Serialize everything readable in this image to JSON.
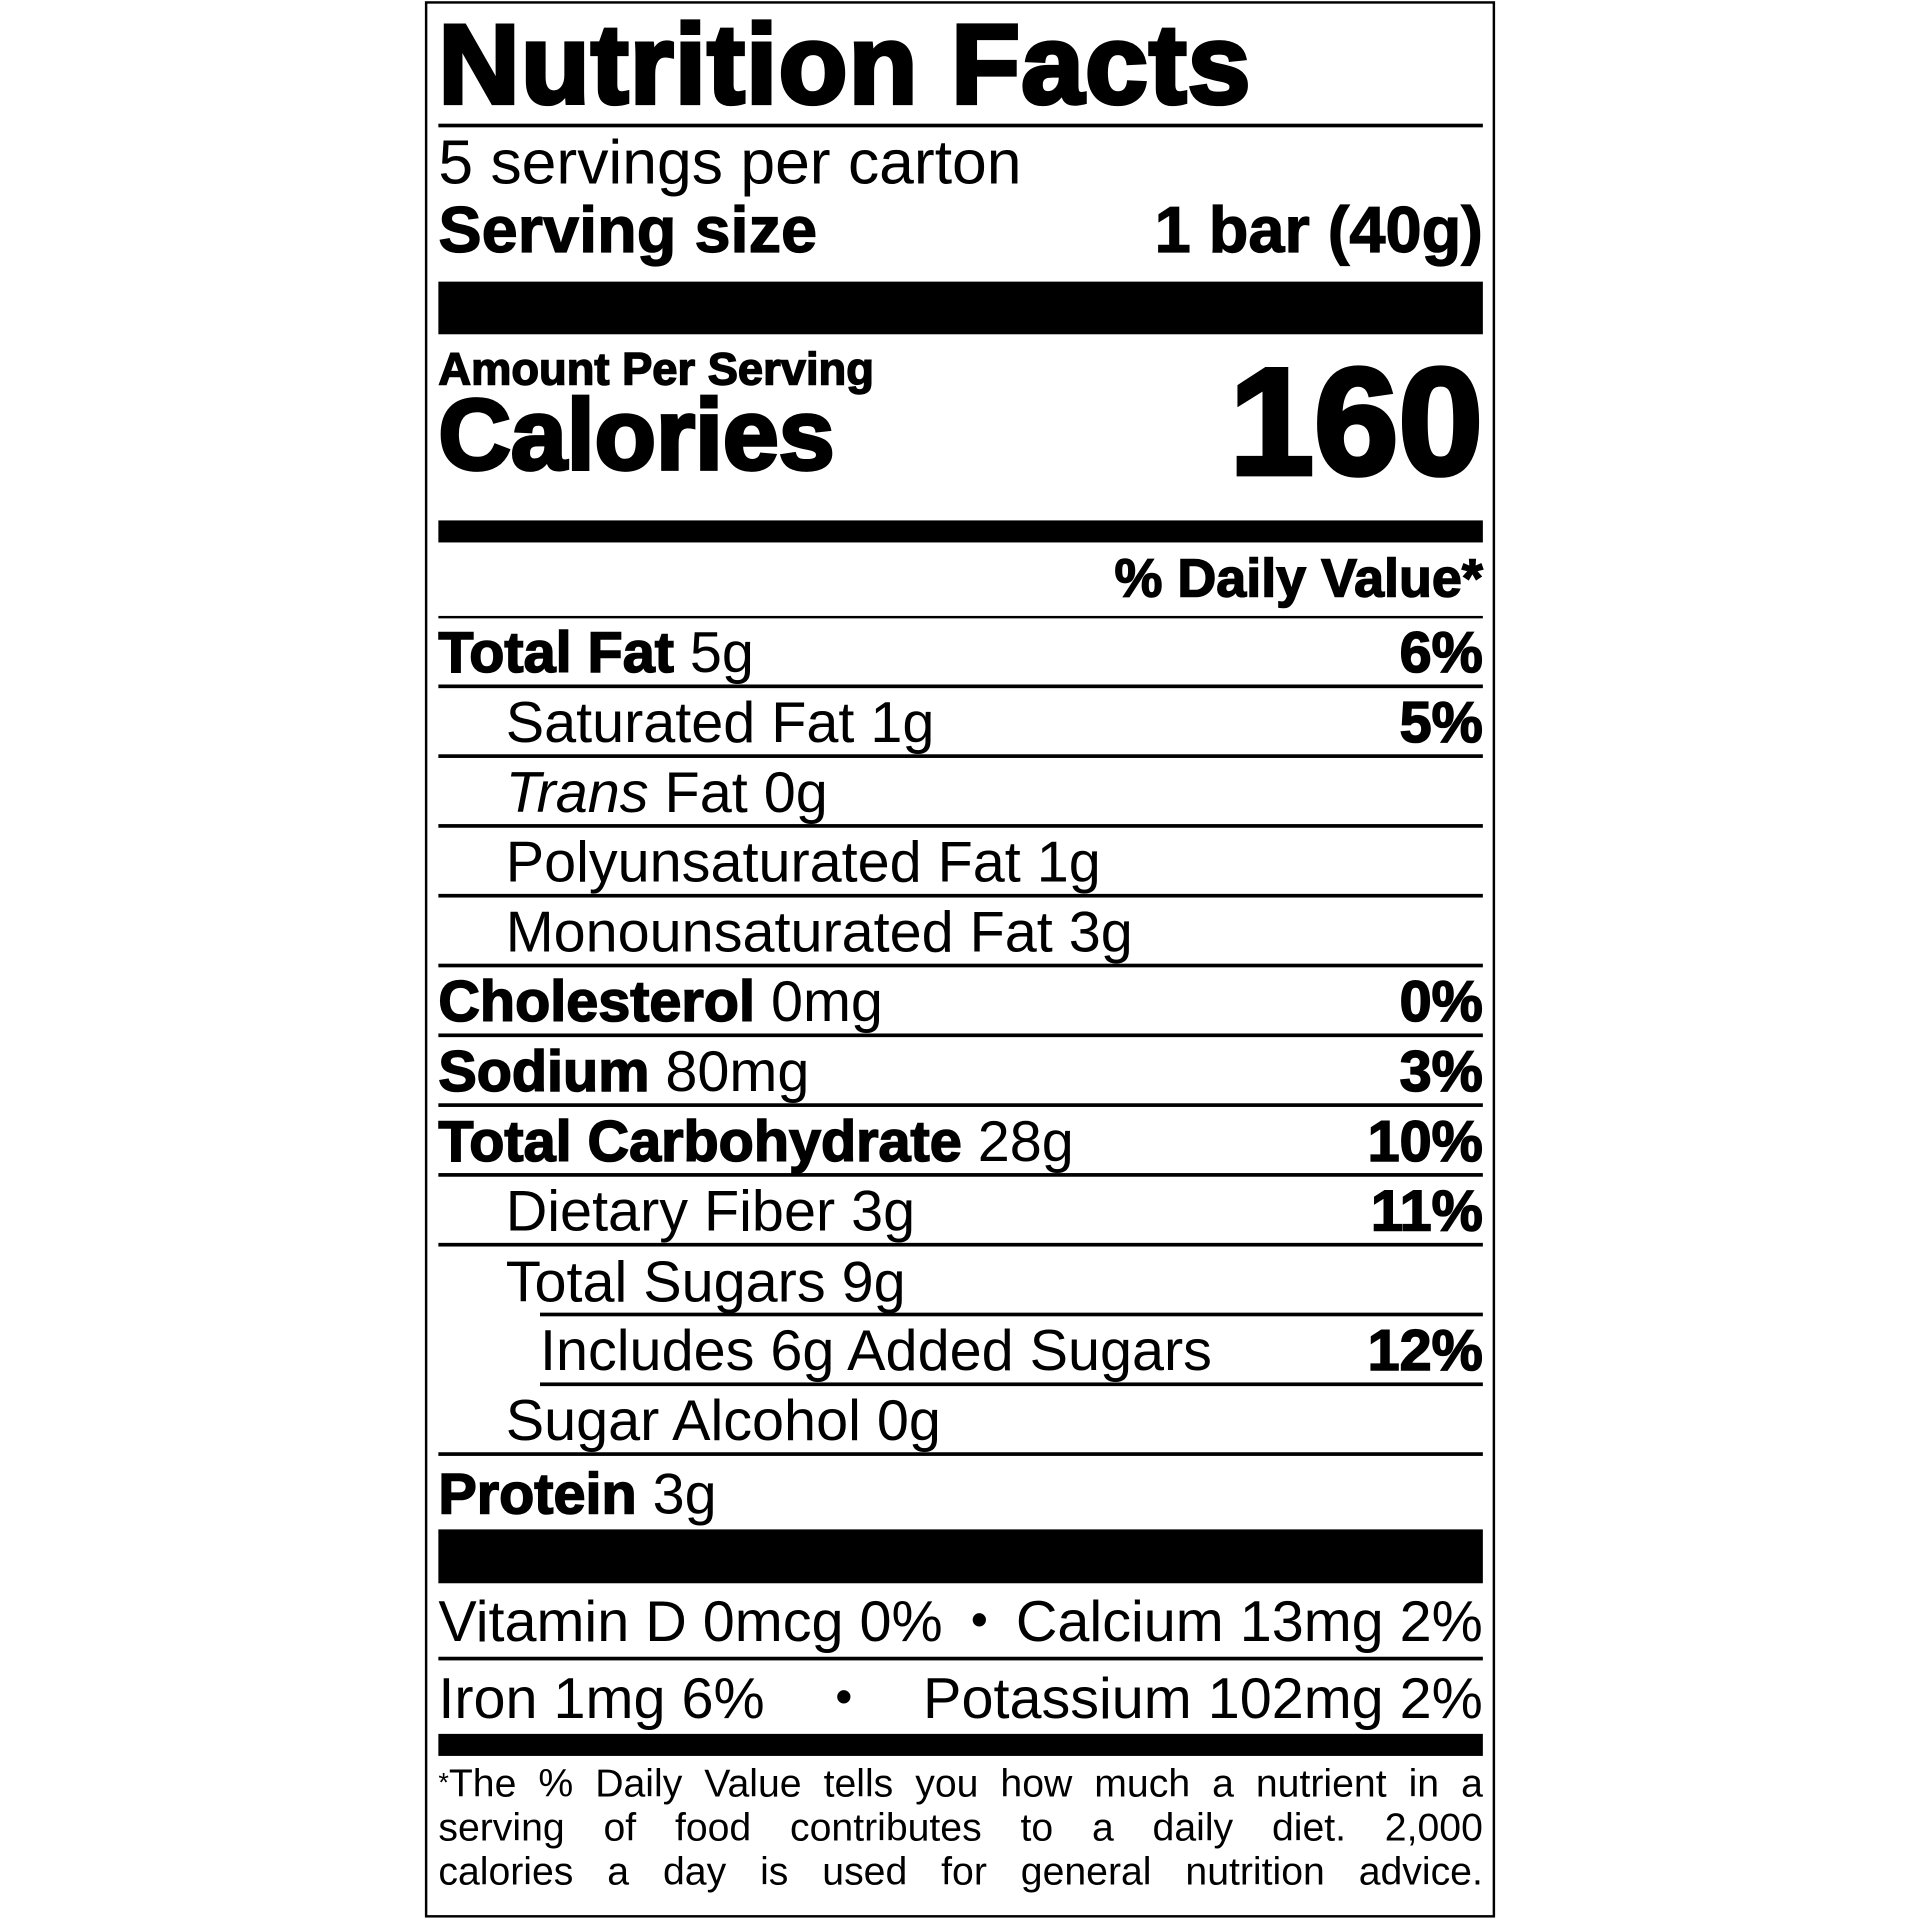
{
  "title": "Nutrition Facts",
  "servings_per_container": "5 servings per carton",
  "serving_size": {
    "label": "Serving size",
    "value": "1 bar (40g)"
  },
  "amount_per_serving": "Amount Per Serving",
  "calories": {
    "label": "Calories",
    "value": "160"
  },
  "daily_value_header": "% Daily Value*",
  "nutrients": [
    {
      "name": "Total Fat",
      "amount": "5g",
      "dv": "6%"
    },
    {
      "name": "Saturated Fat",
      "amount": "1g",
      "dv": "5%"
    },
    {
      "name_italic": "Trans",
      "name": "Fat",
      "amount": "0g",
      "dv": ""
    },
    {
      "name": "Polyunsaturated Fat",
      "amount": "1g",
      "dv": ""
    },
    {
      "name": "Monounsaturated Fat",
      "amount": "3g",
      "dv": ""
    },
    {
      "name": "Cholesterol",
      "amount": "0mg",
      "dv": "0%"
    },
    {
      "name": "Sodium",
      "amount": "80mg",
      "dv": "3%"
    },
    {
      "name": "Total Carbohydrate",
      "amount": "28g",
      "dv": "10%"
    },
    {
      "name": "Dietary Fiber",
      "amount": "3g",
      "dv": "11%"
    },
    {
      "name": "Total Sugars",
      "amount": "9g",
      "dv": ""
    },
    {
      "name": "Includes 6g Added Sugars",
      "amount": "",
      "dv": "12%"
    },
    {
      "name": "Sugar Alcohol",
      "amount": "0g",
      "dv": ""
    },
    {
      "name": "Protein",
      "amount": "3g",
      "dv": ""
    }
  ],
  "vitamins": [
    {
      "left": "Vitamin D 0mcg 0%",
      "right": "Calcium 13mg 2%"
    },
    {
      "left": "Iron 1mg 6%",
      "right": "Potassium 102mg 2%"
    }
  ],
  "separator": "•",
  "footnote": {
    "star": "*",
    "lines": [
      "The % Daily Value tells you how much a nutrient in a",
      "serving of food contributes to a daily diet. 2,000",
      "calories a day is used for general nutrition advice."
    ]
  }
}
